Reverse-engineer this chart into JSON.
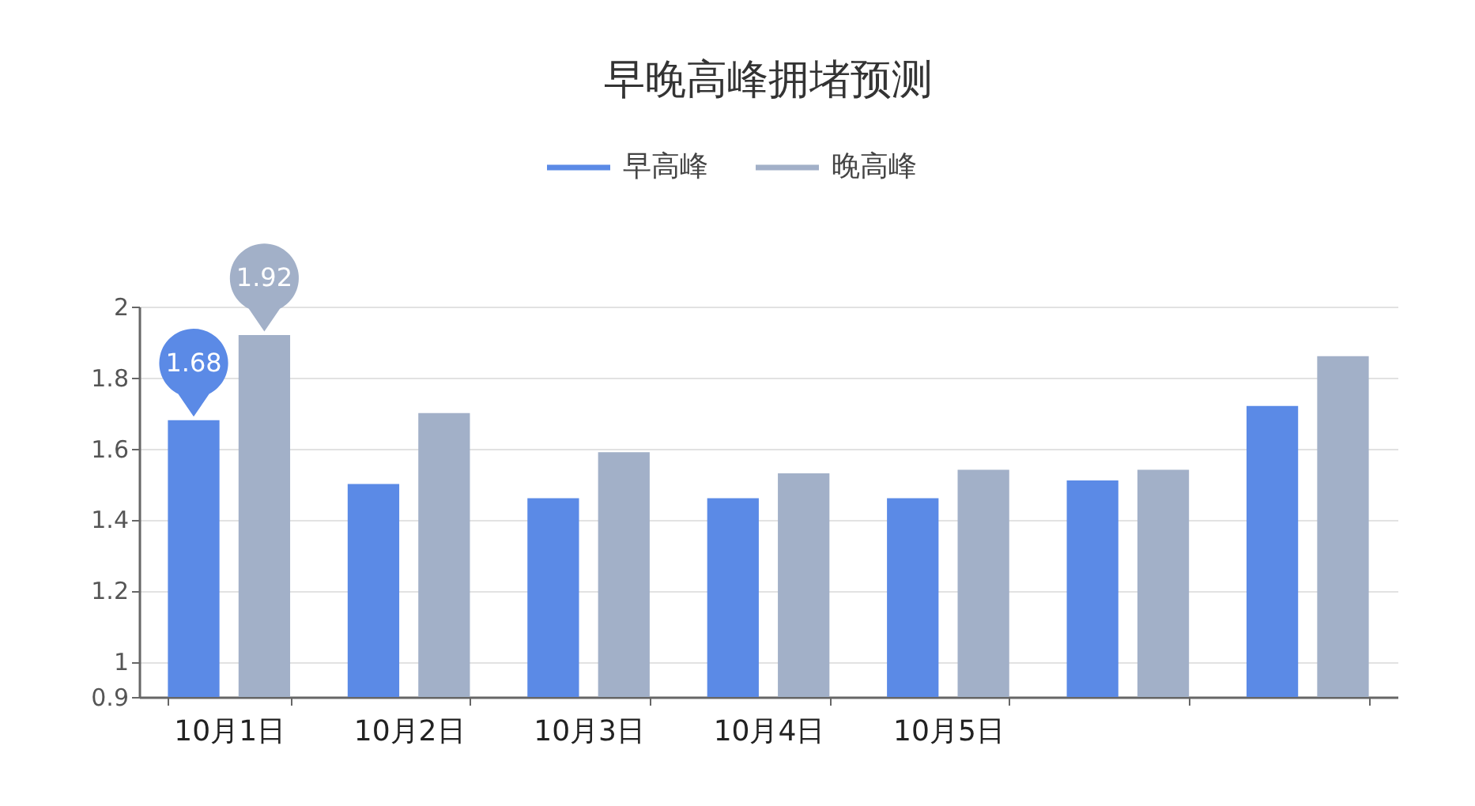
{
  "chart_data": {
    "type": "bar",
    "title": "早晚高峰拥堵预测",
    "categories": [
      "10月1日",
      "10月2日",
      "10月3日",
      "10月4日",
      "10月5日",
      null,
      null
    ],
    "series": [
      {
        "name": "早高峰",
        "color": "#5b8ae6",
        "values": [
          1.68,
          1.5,
          1.46,
          1.46,
          1.46,
          1.51,
          1.72
        ],
        "value_labels": [
          "1.68",
          null,
          null,
          null,
          null,
          null,
          null
        ]
      },
      {
        "name": "晚高峰",
        "color": "#a2b0c8",
        "values": [
          1.92,
          1.7,
          1.59,
          1.53,
          1.54,
          1.54,
          1.86
        ],
        "value_labels": [
          "1.92",
          null,
          null,
          null,
          null,
          null,
          null
        ]
      }
    ],
    "ylim": [
      0.9,
      2
    ],
    "yticks": [
      0.9,
      1,
      1.2,
      1.4,
      1.6,
      1.8,
      2
    ],
    "grid": "y",
    "legend": "top"
  }
}
